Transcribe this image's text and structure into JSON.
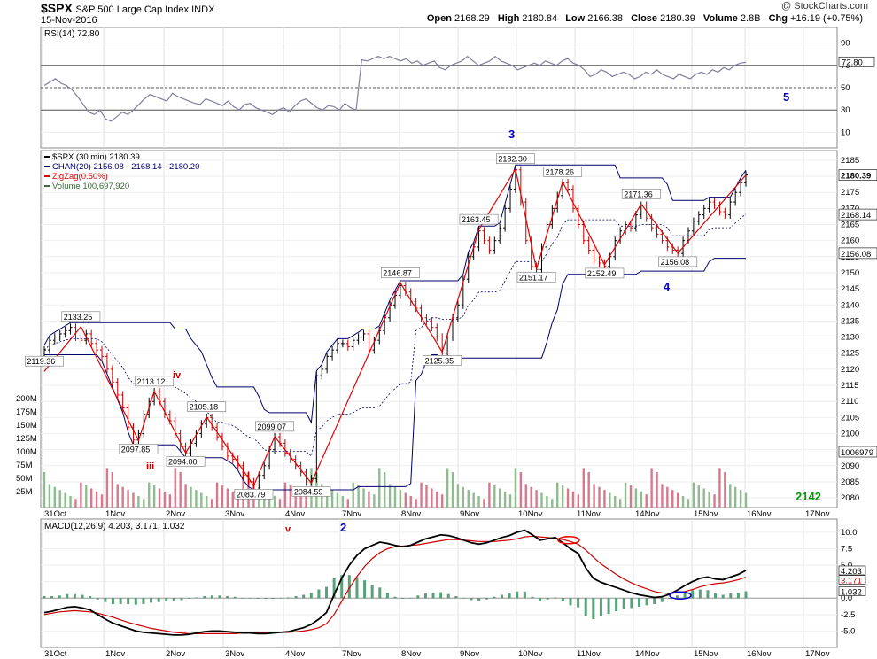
{
  "header": {
    "symbol": "$SPX",
    "name": "S&P 500 Large Cap Index",
    "exchange": "INDX",
    "date": "15-Nov-2016",
    "copyright": "@ StockCharts.com",
    "stats": [
      {
        "label": "Open",
        "value": "2168.29"
      },
      {
        "label": "High",
        "value": "2180.84"
      },
      {
        "label": "Low",
        "value": "2166.38"
      },
      {
        "label": "Close",
        "value": "2180.39"
      },
      {
        "label": "Volume",
        "value": "2.8B"
      },
      {
        "label": "Chg",
        "value": "+16.19 (+0.75%)"
      }
    ]
  },
  "colors": {
    "price_up": "#000000",
    "price_down": "#cc0000",
    "channel": "#00006e",
    "zigzag": "#e00000",
    "volume_up": "#8fbc8f",
    "volume_down": "#d7788c",
    "rsi_line": "#7f7f9f",
    "macd_line": "#000000",
    "signal_line": "#cc0000",
    "histogram": "#2e8b57",
    "wave_label": "#0000cc",
    "sub_wave_label": "#cc0000",
    "target_label": "#009900"
  },
  "chart_data": [
    {
      "panel": "rsi",
      "type": "line",
      "legend": "RSI(14) 72.80",
      "current_value": "72.80",
      "ylim": [
        0,
        100
      ],
      "ticks": [
        "90",
        "70",
        "50",
        "30",
        "10"
      ],
      "reference_lines": [
        70,
        50,
        30
      ],
      "annotations": [
        "5"
      ],
      "values": [
        52,
        55,
        58,
        54,
        52,
        48,
        42,
        35,
        28,
        26,
        30,
        22,
        20,
        24,
        28,
        26,
        30,
        35,
        40,
        44,
        42,
        40,
        38,
        45,
        42,
        40,
        38,
        36,
        35,
        40,
        38,
        36,
        34,
        38,
        33,
        30,
        35,
        36,
        32,
        30,
        28,
        26,
        30,
        32,
        28,
        34,
        38,
        40,
        36,
        32,
        30,
        34,
        33,
        30,
        36,
        32,
        30,
        75,
        74,
        76,
        78,
        76,
        78,
        76,
        74,
        76,
        72,
        74,
        70,
        72,
        74,
        68,
        66,
        70,
        72,
        74,
        78,
        74,
        70,
        72,
        74,
        78,
        74,
        72,
        70,
        66,
        68,
        70,
        72,
        70,
        74,
        72,
        70,
        74,
        76,
        72,
        70,
        66,
        60,
        62,
        66,
        64,
        60,
        62,
        64,
        62,
        58,
        60,
        64,
        62,
        66,
        62,
        60,
        58,
        62,
        60,
        58,
        62,
        64,
        62,
        66,
        64,
        68,
        66,
        70,
        72,
        72.8
      ]
    },
    {
      "panel": "price",
      "type": "ohlc",
      "legend": [
        "$SPX (30 min) 2180.39",
        "CHAN(20) 2156.08 - 2168.14 - 2180.20",
        "ZigZag(0.50%)",
        "Volume 100,697,920"
      ],
      "ylim": [
        2077,
        2188
      ],
      "yticks": [
        2185,
        2180,
        2175,
        2170,
        2165,
        2160,
        2155,
        2150,
        2145,
        2140,
        2135,
        2130,
        2125,
        2120,
        2115,
        2110,
        2105,
        2100,
        2095,
        2090,
        2085,
        2080
      ],
      "x_ticks": [
        "31Oct",
        "1Nov",
        "2Nov",
        "3Nov",
        "4Nov",
        "7Nov",
        "8Nov",
        "9Nov",
        "10Nov",
        "11Nov",
        "14Nov",
        "15Nov",
        "16Nov",
        "17Nov"
      ],
      "right_labels": [
        "2180.39",
        "2168.14",
        "2156.08",
        "1006979"
      ],
      "volume_ticks": [
        "200M",
        "175M",
        "150M",
        "125M",
        "100M",
        "75M",
        "50M",
        "25M"
      ],
      "close": [
        2126,
        2129,
        2130,
        2131,
        2132,
        2133,
        2130,
        2129,
        2131,
        2128,
        2126,
        2124,
        2120,
        2116,
        2112,
        2108,
        2102,
        2098,
        2100,
        2106,
        2110,
        2113,
        2110,
        2106,
        2104,
        2100,
        2096,
        2094,
        2097,
        2100,
        2103,
        2105,
        2102,
        2099,
        2096,
        2093,
        2092,
        2090,
        2087,
        2085,
        2084,
        2087,
        2090,
        2095,
        2099,
        2097,
        2094,
        2092,
        2090,
        2088,
        2085,
        2086,
        2118,
        2120,
        2124,
        2126,
        2128,
        2128,
        2127,
        2129,
        2130,
        2131,
        2126,
        2129,
        2132,
        2136,
        2140,
        2143,
        2146,
        2144,
        2141,
        2139,
        2136,
        2135,
        2133,
        2130,
        2125,
        2130,
        2136,
        2140,
        2148,
        2155,
        2158,
        2163,
        2160,
        2157,
        2160,
        2164,
        2170,
        2176,
        2182,
        2172,
        2160,
        2152,
        2151,
        2158,
        2165,
        2170,
        2174,
        2178,
        2176,
        2170,
        2165,
        2160,
        2157,
        2154,
        2153,
        2152,
        2155,
        2160,
        2163,
        2165,
        2164,
        2168,
        2171,
        2167,
        2164,
        2162,
        2160,
        2158,
        2157,
        2156,
        2160,
        2163,
        2166,
        2168,
        2170,
        2172,
        2171,
        2169,
        2168,
        2172,
        2175,
        2178,
        2180.39
      ],
      "zigzag": [
        {
          "label": "2119.36",
          "value": 2119.36
        },
        {
          "label": "2133.25",
          "value": 2133.25
        },
        {
          "label": "2097.85",
          "value": 2097.85
        },
        {
          "label": "2113.12",
          "value": 2113.12
        },
        {
          "label": "2094.00",
          "value": 2094.0
        },
        {
          "label": "2105.18",
          "value": 2105.18
        },
        {
          "label": "2083.79",
          "value": 2083.79
        },
        {
          "label": "2099.07",
          "value": 2099.07
        },
        {
          "label": "2084.59",
          "value": 2084.59
        },
        {
          "label": "2146.87",
          "value": 2146.87
        },
        {
          "label": "2125.35",
          "value": 2125.35
        },
        {
          "label": "2163.45",
          "value": 2163.45
        },
        {
          "label": "2182.30",
          "value": 2182.3
        },
        {
          "label": "2151.17",
          "value": 2151.17
        },
        {
          "label": "2178.26",
          "value": 2178.26
        },
        {
          "label": "2152.49",
          "value": 2152.49
        },
        {
          "label": "2171.36",
          "value": 2171.36
        },
        {
          "label": "2156.08",
          "value": 2156.08
        },
        {
          "label": "",
          "value": 2180.39
        }
      ],
      "wave_labels": [
        "3",
        "4",
        "5",
        "2"
      ],
      "sub_wave_labels": [
        "iii",
        "iv",
        "v"
      ],
      "target_label": "2142"
    },
    {
      "panel": "macd",
      "type": "line",
      "legend": "MACD(12,26,9) 4.203, 3.171, 1.032",
      "values_label": [
        "4.203",
        "3.171",
        "1.032"
      ],
      "ylim": [
        -7.5,
        12
      ],
      "yticks": [
        "10.0",
        "7.5",
        "5.0",
        "2.5",
        "0.0",
        "-2.5",
        "-5.0"
      ],
      "x_ticks": [
        "31Oct",
        "1Nov",
        "2Nov",
        "3Nov",
        "4Nov",
        "7Nov",
        "8Nov",
        "9Nov",
        "10Nov",
        "11Nov",
        "14Nov",
        "15Nov",
        "16Nov",
        "17Nov"
      ],
      "macd": [
        -2.2,
        -2.0,
        -1.7,
        -1.4,
        -1.3,
        -1.5,
        -1.8,
        -2.5,
        -3.2,
        -3.8,
        -4.2,
        -4.6,
        -5.0,
        -5.2,
        -5.3,
        -5.4,
        -5.5,
        -5.6,
        -5.6,
        -5.5,
        -5.3,
        -5.1,
        -5.0,
        -5.0,
        -5.1,
        -5.2,
        -5.3,
        -5.3,
        -5.4,
        -5.4,
        -5.3,
        -5.2,
        -5.1,
        -4.8,
        -4.5,
        -4.0,
        -3.2,
        -2.2,
        0.5,
        3.0,
        5.0,
        6.5,
        7.5,
        8.0,
        8.5,
        8.3,
        8.0,
        7.8,
        8.0,
        8.5,
        9.0,
        9.3,
        9.6,
        9.5,
        9.2,
        8.8,
        8.4,
        8.2,
        8.4,
        8.8,
        9.2,
        9.5,
        10.0,
        10.3,
        9.6,
        8.8,
        9.0,
        9.2,
        8.4,
        7.5,
        6.8,
        4.6,
        3.0,
        2.4,
        2.0,
        1.6,
        1.2,
        0.8,
        0.5,
        0.3,
        0.1,
        0.2,
        0.6,
        1.2,
        1.9,
        2.5,
        3.0,
        3.2,
        2.9,
        2.8,
        3.2,
        3.6,
        4.203
      ],
      "signal": [
        -2.5,
        -2.3,
        -2.1,
        -2.0,
        -1.9,
        -2.0,
        -2.1,
        -2.3,
        -2.6,
        -2.9,
        -3.3,
        -3.7,
        -4.0,
        -4.3,
        -4.6,
        -4.8,
        -5.0,
        -5.2,
        -5.3,
        -5.4,
        -5.4,
        -5.4,
        -5.4,
        -5.4,
        -5.4,
        -5.4,
        -5.3,
        -5.3,
        -5.3,
        -5.3,
        -5.2,
        -5.2,
        -5.2,
        -5.1,
        -5.0,
        -4.8,
        -4.5,
        -3.9,
        -2.5,
        -0.5,
        1.5,
        3.3,
        4.8,
        6.0,
        6.9,
        7.5,
        7.8,
        7.9,
        8.0,
        8.1,
        8.3,
        8.5,
        8.7,
        8.9,
        8.9,
        8.8,
        8.7,
        8.6,
        8.6,
        8.6,
        8.7,
        8.8,
        9.0,
        9.3,
        9.4,
        9.3,
        9.2,
        9.1,
        8.9,
        8.6,
        8.2,
        7.3,
        6.2,
        5.2,
        4.4,
        3.6,
        2.9,
        2.3,
        1.8,
        1.4,
        1.0,
        0.8,
        0.7,
        0.8,
        1.0,
        1.3,
        1.7,
        2.0,
        2.2,
        2.3,
        2.5,
        2.8,
        3.171
      ],
      "histogram_label": "1.032"
    }
  ]
}
